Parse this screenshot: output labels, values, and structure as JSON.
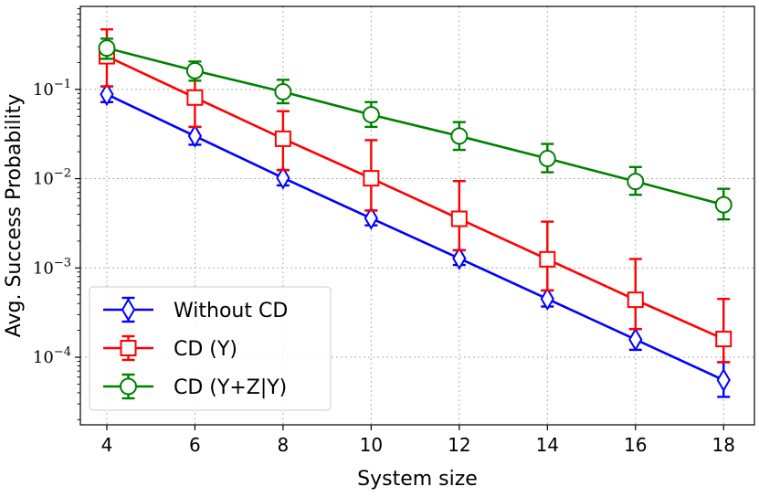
{
  "chart_data": {
    "type": "line",
    "title": "",
    "xlabel": "System size",
    "ylabel": "Avg. Success Probability",
    "x": [
      4,
      6,
      8,
      10,
      12,
      14,
      16,
      18
    ],
    "xlim": [
      3.4,
      18.7
    ],
    "ylim": [
      1.75e-05,
      0.85
    ],
    "yscale": "log",
    "xticks": [
      4,
      6,
      8,
      10,
      12,
      14,
      16,
      18
    ],
    "xtick_labels": [
      "4",
      "6",
      "8",
      "10",
      "12",
      "14",
      "16",
      "18"
    ],
    "yticks": [
      {
        "value": 0.1,
        "base": "10",
        "exp": "−1"
      },
      {
        "value": 0.01,
        "base": "10",
        "exp": "−2"
      },
      {
        "value": 0.001,
        "base": "10",
        "exp": "−3"
      },
      {
        "value": 0.0001,
        "base": "10",
        "exp": "−4"
      }
    ],
    "grid": true,
    "legend_position": "lower-left",
    "series": [
      {
        "name": "Without CD",
        "color": "#0000ff",
        "marker": "diamond",
        "values": [
          0.088,
          0.03,
          0.0102,
          0.0036,
          0.00128,
          0.00045,
          0.000158,
          5.55e-05
        ],
        "err_low": [
          0.072,
          0.024,
          0.0084,
          0.003,
          0.00108,
          0.00037,
          0.000121,
          3.6e-05
        ],
        "err_high": [
          0.108,
          0.038,
          0.0125,
          0.0044,
          0.00158,
          0.00056,
          0.000207,
          8.8e-05
        ]
      },
      {
        "name": "CD (Y)",
        "color": "#ff0000",
        "marker": "square",
        "values": [
          0.235,
          0.081,
          0.028,
          0.0101,
          0.00355,
          0.00125,
          0.00044,
          0.00016
        ],
        "err_low": [
          0.108,
          0.038,
          0.0125,
          0.0044,
          0.00158,
          0.00056,
          0.000207,
          8.8e-05
        ],
        "err_high": [
          0.47,
          0.165,
          0.057,
          0.027,
          0.0094,
          0.0033,
          0.00126,
          0.00045
        ]
      },
      {
        "name": "CD (Y+Z|Y)",
        "color": "#008000",
        "marker": "circle",
        "values": [
          0.29,
          0.162,
          0.094,
          0.052,
          0.03,
          0.0168,
          0.0093,
          0.0051
        ],
        "err_low": [
          0.22,
          0.125,
          0.07,
          0.038,
          0.021,
          0.0118,
          0.0066,
          0.0035
        ],
        "err_high": [
          0.37,
          0.205,
          0.128,
          0.072,
          0.043,
          0.0245,
          0.0135,
          0.0077
        ]
      }
    ]
  }
}
